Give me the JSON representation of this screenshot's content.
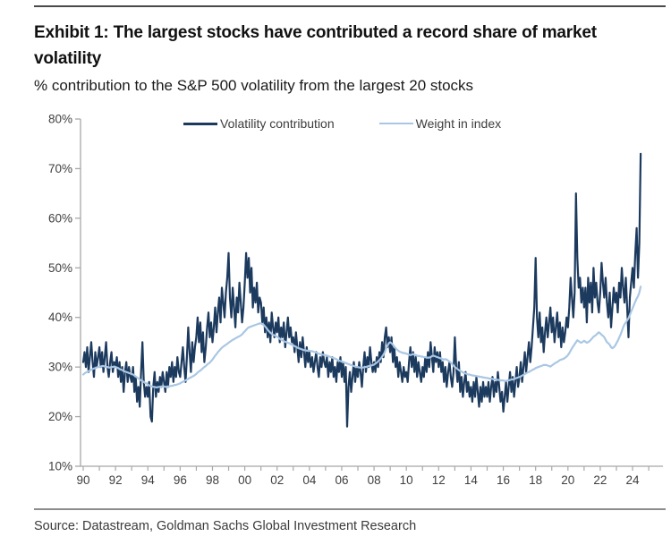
{
  "header": {
    "title": "Exhibit 1: The largest stocks have contributed a record share of market volatility",
    "subtitle": "% contribution to the S&P 500 volatility from the largest 20 stocks"
  },
  "footer": {
    "source": "Source: Datastream, Goldman Sachs Global Investment Research"
  },
  "colors": {
    "volatility_line": "#1c3a5e",
    "weight_line": "#a9c7e4",
    "axis": "#a8a8a8",
    "tick_label": "#404040"
  },
  "chart_data": {
    "type": "line",
    "title": "Exhibit 1: The largest stocks have contributed a record share of market volatility",
    "subtitle": "% contribution to the S&P 500 volatility from the largest 20 stocks",
    "xlabel": "",
    "ylabel": "",
    "x_range": [
      1990,
      2025.2
    ],
    "ylim": [
      10,
      80
    ],
    "grid": false,
    "legend_position": "top-center",
    "y_ticks": [
      "10%",
      "20%",
      "30%",
      "40%",
      "50%",
      "60%",
      "70%",
      "80%"
    ],
    "y_tick_values": [
      10,
      20,
      30,
      40,
      50,
      60,
      70,
      80
    ],
    "x_tick_labels": [
      "90",
      "92",
      "94",
      "96",
      "98",
      "00",
      "02",
      "04",
      "06",
      "08",
      "10",
      "12",
      "14",
      "16",
      "18",
      "20",
      "22",
      "24"
    ],
    "x_label_years": [
      1990,
      1992,
      1994,
      1996,
      1998,
      2000,
      2002,
      2004,
      2006,
      2008,
      2010,
      2012,
      2014,
      2016,
      2018,
      2020,
      2022,
      2024
    ],
    "x_minor_tick_years": [
      1990,
      1991,
      1992,
      1993,
      1994,
      1995,
      1996,
      1997,
      1998,
      1999,
      2000,
      2001,
      2002,
      2003,
      2004,
      2005,
      2006,
      2007,
      2008,
      2009,
      2010,
      2011,
      2012,
      2013,
      2014,
      2015,
      2016,
      2017,
      2018,
      2019,
      2020,
      2021,
      2022,
      2023,
      2024,
      2025
    ],
    "frequency": "monthly",
    "start_year": 1990,
    "series": [
      {
        "name": "Volatility contribution",
        "color": "#1c3a5e",
        "values": [
          31,
          33,
          30,
          34,
          29,
          32,
          35,
          31,
          28,
          33,
          30,
          32,
          34,
          30,
          33,
          29,
          32,
          35,
          30,
          28,
          31,
          33,
          29,
          31,
          30,
          32,
          28,
          31,
          27,
          30,
          25,
          29,
          31,
          27,
          30,
          28,
          27,
          30,
          25,
          28,
          23,
          26,
          22,
          29,
          35,
          27,
          24,
          26,
          24,
          27,
          20,
          19,
          26,
          29,
          24,
          27,
          25,
          28,
          26,
          29,
          27,
          25,
          29,
          26,
          30,
          28,
          31,
          27,
          30,
          28,
          32,
          29,
          28,
          31,
          34,
          30,
          27,
          32,
          38,
          33,
          29,
          35,
          31,
          34,
          36,
          40,
          35,
          39,
          33,
          37,
          31,
          34,
          38,
          41,
          36,
          39,
          35,
          38,
          42,
          37,
          41,
          44,
          39,
          46,
          43,
          40,
          45,
          48,
          53,
          44,
          40,
          46,
          42,
          38,
          44,
          41,
          47,
          43,
          39,
          42,
          47,
          53,
          48,
          52,
          45,
          50,
          42,
          46,
          43,
          47,
          41,
          44,
          43,
          39,
          42,
          37,
          40,
          36,
          39,
          35,
          41,
          38,
          36,
          39,
          37,
          40,
          35,
          38,
          36,
          39,
          34,
          37,
          40,
          36,
          38,
          35,
          36,
          33,
          37,
          34,
          31,
          35,
          32,
          36,
          33,
          30,
          34,
          31,
          33,
          30,
          32,
          29,
          31,
          33,
          30,
          28,
          32,
          30,
          33,
          31,
          30,
          32,
          28,
          31,
          29,
          32,
          28,
          30,
          27,
          31,
          29,
          32,
          28,
          31,
          27,
          30,
          18,
          26,
          29,
          25,
          28,
          31,
          27,
          30,
          28,
          31,
          29,
          26,
          30,
          33,
          29,
          32,
          30,
          34,
          31,
          29,
          31,
          29,
          32,
          30,
          33,
          31,
          35,
          32,
          36,
          38,
          34,
          36,
          33,
          36,
          31,
          34,
          30,
          32,
          28,
          31,
          29,
          27,
          30,
          28,
          29,
          27,
          31,
          34,
          30,
          33,
          29,
          32,
          28,
          31,
          29,
          27,
          30,
          28,
          32,
          29,
          33,
          30,
          35,
          32,
          29,
          34,
          31,
          33,
          30,
          33,
          29,
          31,
          27,
          30,
          26,
          29,
          31,
          28,
          26,
          29,
          36,
          30,
          27,
          31,
          25,
          28,
          24,
          27,
          29,
          25,
          27,
          24,
          26,
          23,
          27,
          24,
          28,
          25,
          22,
          26,
          23,
          27,
          24,
          26,
          24,
          27,
          23,
          26,
          28,
          24,
          27,
          25,
          29,
          26,
          23,
          25,
          21,
          24,
          27,
          23,
          26,
          29,
          25,
          28,
          24,
          27,
          30,
          26,
          28,
          31,
          27,
          30,
          33,
          29,
          32,
          35,
          31,
          34,
          38,
          42,
          52,
          40,
          36,
          41,
          35,
          38,
          33,
          37,
          40,
          36,
          39,
          42,
          37,
          40,
          35,
          38,
          41,
          36,
          39,
          34,
          38,
          35,
          37,
          40,
          38,
          42,
          48,
          44,
          40,
          45,
          65,
          52,
          46,
          48,
          43,
          46,
          42,
          46,
          39,
          48,
          43,
          47,
          41,
          50,
          44,
          47,
          43,
          41,
          45,
          51,
          47,
          44,
          48,
          43,
          40,
          45,
          38,
          42,
          46,
          43,
          45,
          41,
          47,
          44,
          50,
          46,
          43,
          48,
          42,
          36,
          44,
          47,
          50,
          46,
          53,
          58,
          48,
          55,
          73
        ]
      },
      {
        "name": "Weight in index",
        "color": "#a9c7e4",
        "values": [
          28.5,
          28.7,
          28.9,
          29.0,
          29.2,
          29.3,
          29.5,
          29.6,
          29.7,
          29.8,
          29.9,
          30.0,
          30.0,
          30.1,
          30.2,
          30.2,
          30.1,
          30.0,
          30.0,
          29.9,
          29.9,
          30.0,
          30.0,
          30.1,
          30.0,
          29.9,
          29.8,
          29.6,
          29.5,
          29.4,
          29.2,
          29.1,
          29.0,
          28.9,
          28.8,
          28.7,
          28.6,
          28.5,
          28.3,
          28.1,
          27.9,
          27.7,
          27.5,
          27.3,
          27.2,
          27.0,
          26.8,
          26.7,
          26.5,
          26.3,
          26.2,
          26.1,
          26.0,
          26.0,
          25.9,
          25.9,
          26.0,
          26.0,
          26.1,
          26.1,
          26.1,
          26.0,
          26.0,
          26.1,
          26.1,
          26.2,
          26.2,
          26.3,
          26.4,
          26.4,
          26.5,
          26.6,
          26.7,
          26.9,
          27.0,
          27.2,
          27.3,
          27.5,
          27.6,
          27.8,
          27.9,
          28.1,
          28.2,
          28.4,
          28.6,
          28.9,
          29.1,
          29.3,
          29.5,
          29.8,
          30.0,
          30.2,
          30.5,
          30.7,
          30.9,
          31.2,
          31.5,
          31.9,
          32.3,
          32.6,
          33.0,
          33.3,
          33.6,
          33.9,
          34.1,
          34.3,
          34.5,
          34.7,
          34.9,
          35.1,
          35.3,
          35.5,
          35.6,
          35.8,
          35.9,
          36.1,
          36.2,
          36.4,
          36.6,
          36.9,
          37.2,
          37.5,
          37.8,
          38.0,
          38.1,
          38.2,
          38.3,
          38.4,
          38.5,
          38.6,
          38.7,
          38.8,
          38.8,
          38.7,
          38.5,
          38.2,
          37.9,
          37.5,
          37.2,
          36.9,
          36.7,
          36.5,
          36.4,
          36.3,
          36.1,
          35.9,
          35.7,
          35.5,
          35.4,
          35.2,
          35.1,
          35.0,
          34.9,
          34.8,
          34.6,
          34.5,
          34.4,
          34.2,
          34.1,
          33.9,
          33.8,
          33.7,
          33.6,
          33.5,
          33.4,
          33.4,
          33.3,
          33.3,
          33.3,
          33.2,
          33.2,
          33.1,
          33.0,
          32.9,
          32.8,
          32.7,
          32.6,
          32.5,
          32.5,
          32.4,
          32.4,
          32.3,
          32.2,
          32.1,
          32.0,
          31.9,
          31.8,
          31.7,
          31.6,
          31.4,
          31.3,
          31.2,
          31.1,
          31.0,
          30.9,
          30.8,
          30.7,
          30.6,
          30.5,
          30.4,
          30.3,
          30.2,
          30.1,
          30.0,
          30.0,
          29.9,
          29.9,
          29.9,
          29.9,
          30.0,
          30.0,
          30.1,
          30.2,
          30.2,
          30.3,
          30.4,
          30.5,
          30.7,
          30.9,
          31.1,
          31.4,
          31.7,
          32.1,
          32.5,
          33.0,
          33.8,
          34.3,
          34.8,
          35.0,
          34.8,
          34.5,
          34.1,
          33.8,
          33.5,
          33.3,
          33.1,
          33.0,
          32.9,
          32.8,
          32.8,
          32.7,
          32.6,
          32.5,
          32.4,
          32.5,
          32.6,
          32.5,
          32.4,
          32.3,
          32.2,
          32.2,
          32.1,
          32.1,
          32.0,
          32.0,
          31.9,
          31.9,
          31.9,
          32.0,
          32.2,
          32.3,
          32.2,
          32.1,
          32.0,
          31.9,
          31.8,
          31.7,
          31.6,
          31.5,
          31.6,
          31.5,
          31.3,
          31.1,
          30.9,
          30.6,
          30.3,
          30.0,
          29.8,
          29.6,
          29.4,
          29.2,
          29.1,
          28.9,
          28.8,
          28.7,
          28.6,
          28.5,
          28.5,
          28.4,
          28.3,
          28.3,
          28.2,
          28.2,
          28.1,
          28.1,
          28.0,
          28.0,
          27.9,
          27.9,
          27.8,
          27.8,
          27.7,
          27.7,
          27.6,
          27.6,
          27.5,
          27.5,
          27.5,
          27.4,
          27.4,
          27.3,
          27.3,
          27.3,
          27.2,
          27.2,
          27.3,
          27.3,
          27.4,
          27.5,
          27.5,
          27.6,
          27.7,
          27.8,
          27.9,
          28.0,
          28.1,
          28.3,
          28.4,
          28.6,
          28.7,
          28.9,
          29.0,
          29.2,
          29.3,
          29.5,
          29.6,
          29.8,
          29.9,
          30.0,
          30.1,
          30.2,
          30.3,
          30.4,
          30.4,
          30.4,
          30.3,
          30.2,
          30.1,
          30.3,
          30.5,
          30.7,
          30.9,
          31.0,
          31.2,
          31.4,
          31.5,
          31.6,
          31.7,
          31.9,
          32.1,
          32.4,
          32.8,
          33.3,
          33.8,
          34.2,
          34.6,
          35.0,
          35.4,
          35.2,
          35.0,
          34.9,
          35.1,
          35.3,
          35.1,
          34.9,
          35.0,
          35.2,
          35.5,
          35.8,
          36.1,
          36.3,
          36.5,
          36.8,
          37.0,
          36.8,
          36.5,
          36.3,
          36.0,
          35.5,
          35.0,
          34.8,
          34.5,
          34.0,
          33.8,
          34.0,
          34.3,
          34.8,
          35.3,
          35.9,
          36.5,
          37.2,
          38.0,
          38.6,
          39.0,
          39.4,
          39.8,
          40.5,
          41.2,
          41.8,
          42.5,
          43.2,
          43.8,
          44.3,
          45.0,
          46.2
        ]
      }
    ]
  },
  "legend": {
    "items": [
      {
        "label": "Volatility contribution",
        "color": "#1c3a5e"
      },
      {
        "label": "Weight in index",
        "color": "#a9c7e4"
      }
    ]
  }
}
